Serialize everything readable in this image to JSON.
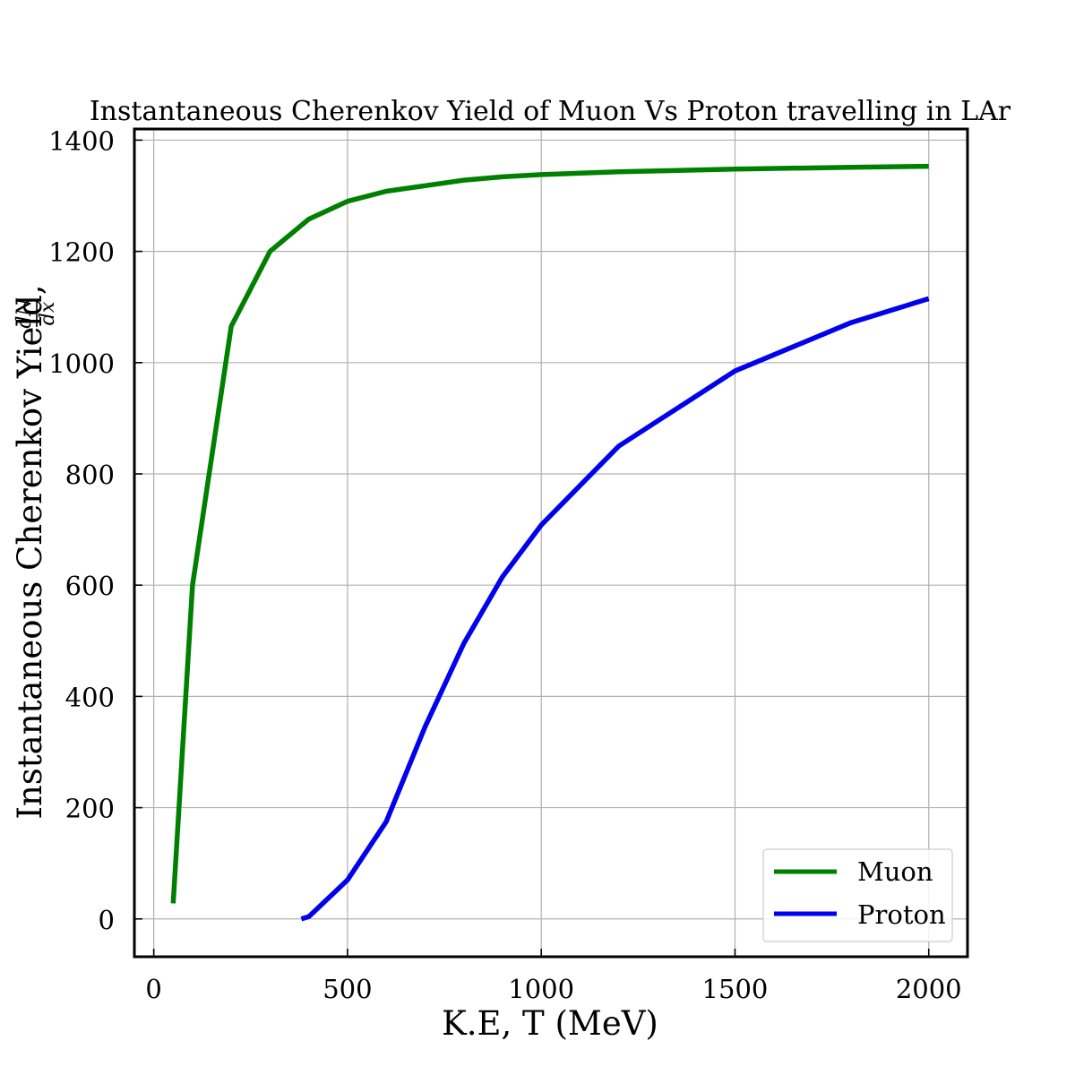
{
  "chart_data": {
    "type": "line",
    "title": "Instantaneous Cherenkov Yield of Muon Vs Proton travelling in LAr",
    "xlabel": "K.E, T (MeV)",
    "ylabel": "Instantaneous Cherenkov Yield, ",
    "ylabel_fraction": {
      "numerator": "dN",
      "denominator": "dx"
    },
    "xlim": [
      -50,
      2100
    ],
    "ylim": [
      -68,
      1420
    ],
    "xticks": [
      0,
      500,
      1000,
      1500,
      2000
    ],
    "yticks": [
      0,
      200,
      400,
      600,
      800,
      1000,
      1200,
      1400
    ],
    "grid": true,
    "legend_position": "lower-right",
    "series": [
      {
        "name": "Muon",
        "color": "#008000",
        "x": [
          50,
          100,
          200,
          300,
          400,
          500,
          600,
          800,
          900,
          1000,
          1200,
          1500,
          1800,
          2000
        ],
        "y": [
          28,
          600,
          1065,
          1200,
          1258,
          1290,
          1308,
          1328,
          1334,
          1338,
          1343,
          1348,
          1351,
          1353
        ]
      },
      {
        "name": "Proton",
        "color": "#0000ee",
        "x": [
          381,
          400,
          500,
          600,
          700,
          800,
          900,
          1000,
          1200,
          1500,
          1800,
          2000
        ],
        "y": [
          0,
          4,
          70,
          175,
          345,
          495,
          615,
          708,
          850,
          985,
          1072,
          1115
        ]
      }
    ]
  }
}
